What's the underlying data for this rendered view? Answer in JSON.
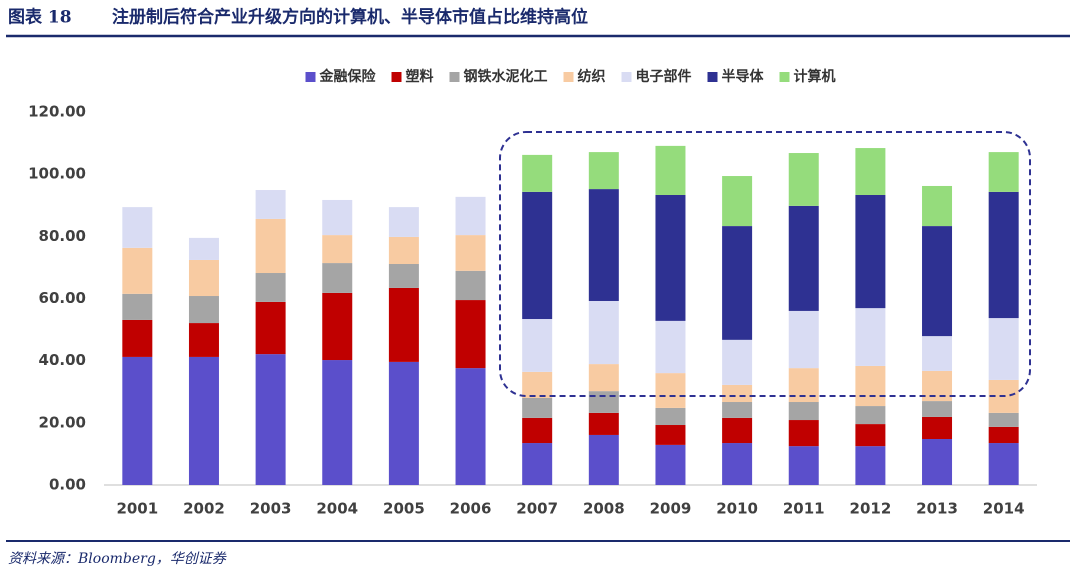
{
  "header": {
    "label": "图表 18",
    "title": "注册制后符合产业升级方向的计算机、半导体市值占比维持高位"
  },
  "source": "资料来源：Bloomberg，华创证券",
  "chart_data": {
    "type": "stacked_bar",
    "categories": [
      "2001",
      "2002",
      "2003",
      "2004",
      "2005",
      "2006",
      "2007",
      "2008",
      "2009",
      "2010",
      "2011",
      "2012",
      "2013",
      "2014"
    ],
    "ylim": [
      0,
      120
    ],
    "yticks": [
      {
        "value": 0,
        "label": "0.00"
      },
      {
        "value": 20,
        "label": "20.00"
      },
      {
        "value": 40,
        "label": "40.00"
      },
      {
        "value": 60,
        "label": "60.00"
      },
      {
        "value": 80,
        "label": "80.00"
      },
      {
        "value": 100,
        "label": "100.00"
      },
      {
        "value": 120,
        "label": "120.00"
      }
    ],
    "grid": false,
    "legend": "top",
    "series": [
      {
        "name": "金融保险",
        "color": "#5b4fcb",
        "values": [
          41.2,
          41.2,
          42.1,
          40.2,
          39.6,
          37.6,
          13.5,
          16.1,
          12.9,
          13.5,
          12.5,
          12.5,
          14.8,
          13.5
        ]
      },
      {
        "name": "塑料",
        "color": "#c00000",
        "values": [
          11.9,
          10.9,
          16.8,
          21.6,
          23.8,
          21.9,
          8.1,
          7.1,
          6.4,
          8.1,
          8.4,
          7.1,
          7.1,
          5.2
        ]
      },
      {
        "name": "钢铁水泥化工",
        "color": "#a5a5a5",
        "values": [
          8.4,
          8.7,
          9.3,
          9.6,
          7.7,
          9.4,
          6.4,
          7.0,
          5.5,
          5.1,
          5.8,
          5.8,
          5.1,
          4.5
        ]
      },
      {
        "name": "纺织",
        "color": "#f8cba2",
        "values": [
          14.8,
          11.6,
          17.4,
          9.0,
          8.7,
          11.5,
          8.4,
          8.7,
          11.2,
          5.5,
          10.9,
          12.9,
          9.7,
          10.6
        ]
      },
      {
        "name": "电子部件",
        "color": "#d9dcf3",
        "values": [
          13.1,
          7.1,
          9.3,
          11.3,
          9.6,
          12.3,
          17.0,
          20.3,
          16.8,
          14.5,
          18.4,
          18.6,
          11.2,
          19.9
        ]
      },
      {
        "name": "半导体",
        "color": "#2e3192",
        "values": [
          0,
          0,
          0,
          0,
          0,
          0,
          40.9,
          36.0,
          40.5,
          36.6,
          33.8,
          36.4,
          35.4,
          40.6
        ]
      },
      {
        "name": "计算机",
        "color": "#95dc7c",
        "values": [
          0,
          0,
          0,
          0,
          0,
          0,
          11.9,
          11.9,
          15.8,
          16.1,
          17.0,
          15.1,
          12.9,
          12.8
        ]
      }
    ]
  }
}
